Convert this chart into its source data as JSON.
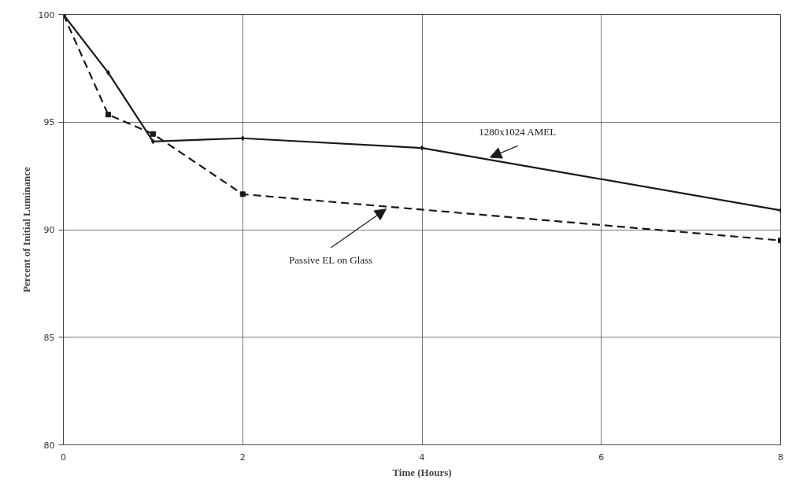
{
  "chart_data": {
    "type": "line",
    "xlabel": "Time (Hours)",
    "ylabel": "Percent of Initial Luminance",
    "xlim": [
      0,
      8
    ],
    "ylim": [
      80,
      100
    ],
    "xticks": [
      0,
      2,
      4,
      6,
      8
    ],
    "yticks": [
      80,
      85,
      90,
      95,
      100
    ],
    "grid": true,
    "series": [
      {
        "name": "1280x1024 AMEL",
        "color": "#1a1a1a",
        "x": [
          0,
          0.5,
          1,
          2,
          4,
          8
        ],
        "values": [
          100,
          97.3,
          94.1,
          94.25,
          93.8,
          90.9
        ],
        "line_style": "solid",
        "marker": "diamond"
      },
      {
        "name": "Passive EL on Glass",
        "color": "#1a1a1a",
        "x": [
          0,
          0.5,
          1,
          2,
          8
        ],
        "values": [
          100,
          95.35,
          94.45,
          91.65,
          89.5
        ],
        "line_style": "dashed",
        "marker": "square"
      }
    ]
  }
}
